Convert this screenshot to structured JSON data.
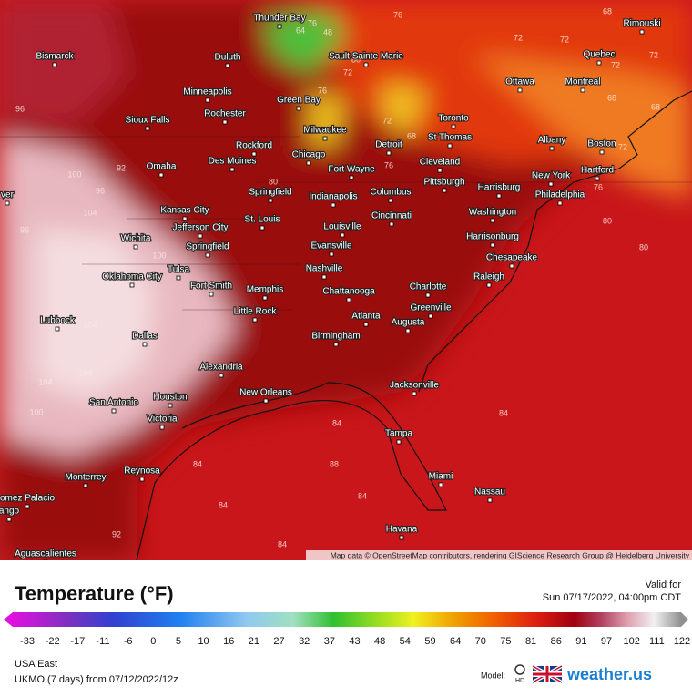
{
  "map": {
    "cities": [
      "Thunder Bay",
      "Bismarck",
      "Duluth",
      "Sault Sainte Marie",
      "Rimouski",
      "Quebec",
      "Ottawa",
      "Montreal",
      "Minneapolis",
      "Green Bay",
      "Rochester",
      "Toronto",
      "Sioux Falls",
      "Milwaukee",
      "St Thomas",
      "Albany",
      "Boston",
      "Rockford",
      "Detroit",
      "Chicago",
      "Des Moines",
      "Omaha",
      "Cleveland",
      "Fort Wayne",
      "Hartford",
      "New York",
      "Springfield",
      "Indianapolis",
      "Columbus",
      "Pittsburgh",
      "Harrisburg",
      "Philadelphia",
      "Kansas City",
      "Cincinnati",
      "Washington",
      "St. Louis",
      "Jefferson City",
      "Louisville",
      "Harrisonburg",
      "Wichita",
      "Springfield",
      "Evansville",
      "Chesapeake",
      "Oklahoma City",
      "Tulsa",
      "Nashville",
      "Raleigh",
      "Fort Smith",
      "Memphis",
      "Charlotte",
      "Chattanooga",
      "Little Rock",
      "Greenville",
      "Atlanta",
      "Augusta",
      "Lubbock",
      "Dallas",
      "Birmingham",
      "Alexandria",
      "Jacksonville",
      "New Orleans",
      "Houston",
      "San Antonio",
      "Victoria",
      "Tampa",
      "Reynosa",
      "Monterrey",
      "Miami",
      "Nassau",
      "omez Palacio",
      "Havana",
      "Aguascalientes",
      "ango",
      "ver"
    ],
    "contour_labels": [
      76,
      64,
      48,
      76,
      72,
      72,
      68,
      72,
      72,
      68,
      68,
      72,
      76,
      80,
      80,
      96,
      100,
      96,
      104,
      96,
      100,
      92,
      104,
      104,
      104,
      100,
      92,
      84,
      84,
      84,
      84,
      84,
      84,
      88,
      80,
      72,
      76,
      72,
      68,
      76,
      80
    ],
    "attribution": "Map data © OpenStreetMap contributors, rendering GIScience Research Group @ Heidelberg University"
  },
  "legend": {
    "title": "Temperature (°F)",
    "ticks": [
      -33,
      -22,
      -17,
      -11,
      -6,
      0,
      5,
      10,
      16,
      21,
      27,
      32,
      37,
      43,
      48,
      54,
      59,
      64,
      70,
      75,
      81,
      86,
      91,
      97,
      102,
      111,
      122
    ]
  },
  "valid": {
    "label": "Valid for",
    "time": "Sun 07/17/2022, 04:00pm CDT"
  },
  "footer": {
    "region": "USA East",
    "model_run": "UKMO (7 days) from 07/12/2022/12z",
    "model_label": "Model:",
    "hd": "HD",
    "brand": "weather.us"
  }
}
